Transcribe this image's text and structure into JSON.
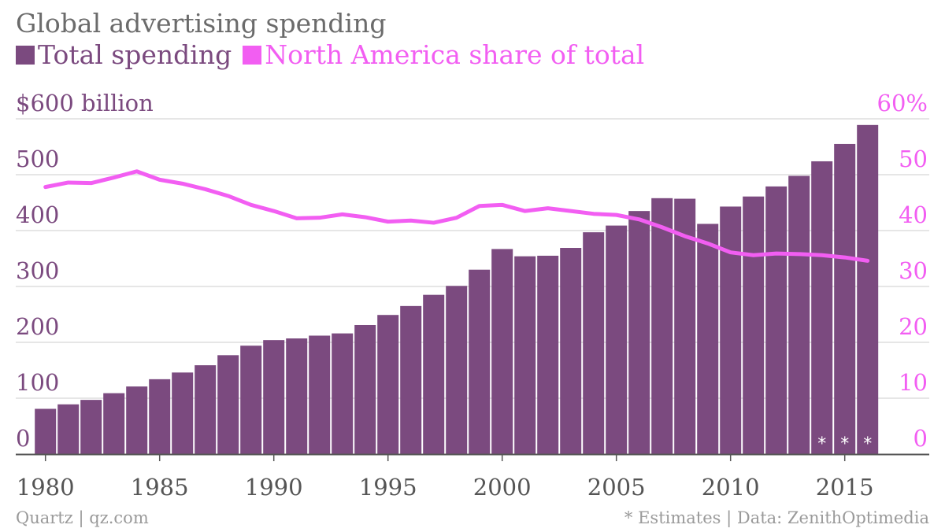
{
  "colors": {
    "bar": "#7b4a7f",
    "line": "#f25ef2",
    "grid": "#dddddd",
    "axis": "#555555",
    "left_axis_text": "#7b4a7f",
    "right_axis_text": "#f25ef2",
    "x_tick_text": "#555555",
    "asterisk": "#ffffff",
    "title": "#6b6b6b",
    "footer": "#9a9a9a"
  },
  "footer": {
    "source": "Quartz | qz.com",
    "note": "* Estimates | Data: ZenithOptimedia"
  },
  "chart_data": {
    "type": "bar",
    "title": "Global advertising spending",
    "legend_position": "top-left",
    "grid": true,
    "x": [
      1980,
      1981,
      1982,
      1983,
      1984,
      1985,
      1986,
      1987,
      1988,
      1989,
      1990,
      1991,
      1992,
      1993,
      1994,
      1995,
      1996,
      1997,
      1998,
      1999,
      2000,
      2001,
      2002,
      2003,
      2004,
      2005,
      2006,
      2007,
      2008,
      2009,
      2010,
      2011,
      2012,
      2013,
      2014,
      2015,
      2016
    ],
    "xlim": [
      1978.7,
      2018.7
    ],
    "x_ticks": [
      "1980",
      "1985",
      "1990",
      "1995",
      "2000",
      "2005",
      "2010",
      "2015"
    ],
    "left_axis": {
      "ylim": [
        0,
        600
      ],
      "ticks": [
        "0",
        "100",
        "200",
        "300",
        "400",
        "500",
        "$600 billion"
      ]
    },
    "right_axis": {
      "ylim": [
        0,
        60
      ],
      "ticks": [
        "0",
        "10",
        "20",
        "30",
        "40",
        "50",
        "60%"
      ]
    },
    "series": [
      {
        "name": "Total spending",
        "type": "bar",
        "axis": "left",
        "values": [
          81,
          89,
          97,
          109,
          121,
          134,
          146,
          159,
          177,
          194,
          204,
          207,
          212,
          216,
          231,
          249,
          265,
          285,
          301,
          330,
          367,
          354,
          355,
          369,
          397,
          409,
          435,
          458,
          457,
          412,
          443,
          461,
          479,
          498,
          524,
          555,
          589
        ]
      },
      {
        "name": "North America share of total",
        "type": "line",
        "axis": "right",
        "values": [
          47.8,
          48.6,
          48.5,
          49.5,
          50.6,
          49.1,
          48.4,
          47.4,
          46.2,
          44.6,
          43.5,
          42.2,
          42.3,
          42.9,
          42.4,
          41.6,
          41.8,
          41.4,
          42.3,
          44.4,
          44.6,
          43.5,
          44.0,
          43.5,
          43.0,
          42.8,
          42.0,
          40.6,
          39.0,
          37.7,
          36.1,
          35.6,
          35.9,
          35.8,
          35.6,
          35.2,
          34.6
        ]
      }
    ],
    "estimate_marker": "*",
    "estimate_years": [
      2014,
      2015,
      2016
    ]
  }
}
